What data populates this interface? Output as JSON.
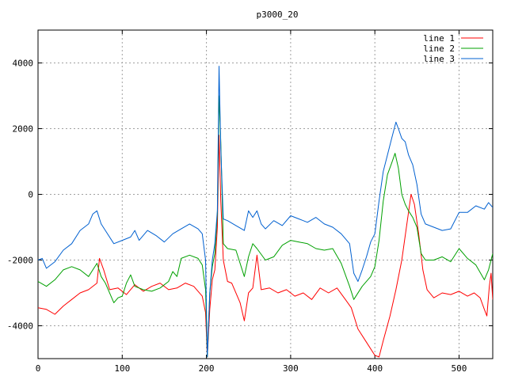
{
  "chart_data": {
    "type": "line",
    "title": "p3000_20",
    "xlabel": "",
    "ylabel": "",
    "xlim": [
      0,
      540
    ],
    "ylim": [
      -5000,
      5000
    ],
    "x_ticks": [
      0,
      100,
      200,
      300,
      400,
      500
    ],
    "y_ticks": [
      -4000,
      -2000,
      0,
      2000,
      4000
    ],
    "grid": true,
    "legend_position": "top-right",
    "series": [
      {
        "name": "line 1",
        "color": "#ff0000",
        "points": [
          [
            0,
            -3450
          ],
          [
            10,
            -3500
          ],
          [
            20,
            -3650
          ],
          [
            30,
            -3400
          ],
          [
            40,
            -3200
          ],
          [
            50,
            -3000
          ],
          [
            60,
            -2900
          ],
          [
            70,
            -2700
          ],
          [
            73,
            -1950
          ],
          [
            78,
            -2300
          ],
          [
            85,
            -2900
          ],
          [
            95,
            -2850
          ],
          [
            105,
            -3050
          ],
          [
            115,
            -2750
          ],
          [
            125,
            -2950
          ],
          [
            135,
            -2800
          ],
          [
            145,
            -2700
          ],
          [
            155,
            -2900
          ],
          [
            165,
            -2850
          ],
          [
            175,
            -2700
          ],
          [
            185,
            -2800
          ],
          [
            190,
            -2950
          ],
          [
            195,
            -3100
          ],
          [
            199,
            -3600
          ],
          [
            201,
            -4950
          ],
          [
            204,
            -3500
          ],
          [
            207,
            -2600
          ],
          [
            210,
            -2300
          ],
          [
            213,
            -1000
          ],
          [
            215,
            1800
          ],
          [
            217,
            -200
          ],
          [
            220,
            -2000
          ],
          [
            225,
            -2650
          ],
          [
            230,
            -2700
          ],
          [
            240,
            -3300
          ],
          [
            245,
            -3850
          ],
          [
            250,
            -3000
          ],
          [
            255,
            -2850
          ],
          [
            260,
            -1850
          ],
          [
            265,
            -2900
          ],
          [
            275,
            -2850
          ],
          [
            285,
            -3000
          ],
          [
            295,
            -2900
          ],
          [
            305,
            -3100
          ],
          [
            315,
            -3000
          ],
          [
            325,
            -3200
          ],
          [
            335,
            -2850
          ],
          [
            345,
            -3000
          ],
          [
            355,
            -2850
          ],
          [
            365,
            -3200
          ],
          [
            372,
            -3450
          ],
          [
            380,
            -4100
          ],
          [
            390,
            -4500
          ],
          [
            400,
            -4900
          ],
          [
            405,
            -4950
          ],
          [
            410,
            -4450
          ],
          [
            418,
            -3700
          ],
          [
            425,
            -2900
          ],
          [
            432,
            -2000
          ],
          [
            438,
            -900
          ],
          [
            443,
            0
          ],
          [
            447,
            -300
          ],
          [
            452,
            -1200
          ],
          [
            457,
            -2300
          ],
          [
            462,
            -2900
          ],
          [
            470,
            -3150
          ],
          [
            480,
            -3000
          ],
          [
            490,
            -3050
          ],
          [
            500,
            -2950
          ],
          [
            510,
            -3100
          ],
          [
            518,
            -3000
          ],
          [
            525,
            -3150
          ],
          [
            530,
            -3500
          ],
          [
            533,
            -3700
          ],
          [
            536,
            -2800
          ],
          [
            538,
            -2400
          ],
          [
            540,
            -3200
          ]
        ]
      },
      {
        "name": "line 2",
        "color": "#00a000",
        "points": [
          [
            0,
            -2650
          ],
          [
            10,
            -2800
          ],
          [
            20,
            -2600
          ],
          [
            30,
            -2300
          ],
          [
            40,
            -2200
          ],
          [
            50,
            -2300
          ],
          [
            60,
            -2500
          ],
          [
            70,
            -2100
          ],
          [
            75,
            -2500
          ],
          [
            80,
            -2700
          ],
          [
            90,
            -3300
          ],
          [
            95,
            -3150
          ],
          [
            100,
            -3100
          ],
          [
            105,
            -2700
          ],
          [
            110,
            -2450
          ],
          [
            115,
            -2800
          ],
          [
            125,
            -2900
          ],
          [
            135,
            -2950
          ],
          [
            145,
            -2850
          ],
          [
            155,
            -2650
          ],
          [
            160,
            -2350
          ],
          [
            165,
            -2500
          ],
          [
            170,
            -1950
          ],
          [
            180,
            -1850
          ],
          [
            190,
            -1950
          ],
          [
            195,
            -2150
          ],
          [
            199,
            -2900
          ],
          [
            201,
            -4950
          ],
          [
            204,
            -3000
          ],
          [
            207,
            -2200
          ],
          [
            210,
            -1800
          ],
          [
            213,
            -600
          ],
          [
            215,
            3000
          ],
          [
            217,
            1600
          ],
          [
            220,
            -1500
          ],
          [
            225,
            -1650
          ],
          [
            235,
            -1700
          ],
          [
            245,
            -2500
          ],
          [
            250,
            -1900
          ],
          [
            255,
            -1500
          ],
          [
            260,
            -1650
          ],
          [
            270,
            -2000
          ],
          [
            280,
            -1900
          ],
          [
            290,
            -1550
          ],
          [
            300,
            -1400
          ],
          [
            310,
            -1450
          ],
          [
            320,
            -1500
          ],
          [
            330,
            -1650
          ],
          [
            340,
            -1700
          ],
          [
            350,
            -1650
          ],
          [
            360,
            -2100
          ],
          [
            370,
            -2800
          ],
          [
            375,
            -3200
          ],
          [
            385,
            -2800
          ],
          [
            395,
            -2500
          ],
          [
            400,
            -2200
          ],
          [
            405,
            -1400
          ],
          [
            410,
            -200
          ],
          [
            415,
            600
          ],
          [
            420,
            950
          ],
          [
            424,
            1250
          ],
          [
            428,
            800
          ],
          [
            432,
            0
          ],
          [
            436,
            -300
          ],
          [
            440,
            -500
          ],
          [
            445,
            -700
          ],
          [
            450,
            -1000
          ],
          [
            455,
            -1800
          ],
          [
            460,
            -2000
          ],
          [
            470,
            -2000
          ],
          [
            480,
            -1900
          ],
          [
            490,
            -2050
          ],
          [
            500,
            -1650
          ],
          [
            510,
            -1950
          ],
          [
            520,
            -2150
          ],
          [
            530,
            -2600
          ],
          [
            535,
            -2300
          ],
          [
            540,
            -1800
          ]
        ]
      },
      {
        "name": "line 3",
        "color": "#0060d0",
        "points": [
          [
            0,
            -2000
          ],
          [
            5,
            -1950
          ],
          [
            10,
            -2250
          ],
          [
            20,
            -2050
          ],
          [
            30,
            -1700
          ],
          [
            40,
            -1500
          ],
          [
            50,
            -1100
          ],
          [
            60,
            -900
          ],
          [
            65,
            -600
          ],
          [
            70,
            -500
          ],
          [
            75,
            -900
          ],
          [
            80,
            -1100
          ],
          [
            90,
            -1500
          ],
          [
            100,
            -1400
          ],
          [
            110,
            -1300
          ],
          [
            115,
            -1100
          ],
          [
            120,
            -1400
          ],
          [
            130,
            -1100
          ],
          [
            140,
            -1250
          ],
          [
            150,
            -1450
          ],
          [
            160,
            -1200
          ],
          [
            170,
            -1050
          ],
          [
            180,
            -900
          ],
          [
            190,
            -1050
          ],
          [
            195,
            -1200
          ],
          [
            199,
            -2000
          ],
          [
            201,
            -4950
          ],
          [
            204,
            -3000
          ],
          [
            207,
            -2000
          ],
          [
            210,
            -1500
          ],
          [
            213,
            -500
          ],
          [
            215,
            3900
          ],
          [
            217,
            1400
          ],
          [
            220,
            -750
          ],
          [
            225,
            -800
          ],
          [
            235,
            -950
          ],
          [
            245,
            -1100
          ],
          [
            250,
            -500
          ],
          [
            255,
            -700
          ],
          [
            260,
            -500
          ],
          [
            265,
            -900
          ],
          [
            270,
            -1050
          ],
          [
            280,
            -800
          ],
          [
            290,
            -950
          ],
          [
            300,
            -650
          ],
          [
            310,
            -750
          ],
          [
            320,
            -850
          ],
          [
            330,
            -700
          ],
          [
            340,
            -900
          ],
          [
            350,
            -1000
          ],
          [
            360,
            -1200
          ],
          [
            370,
            -1500
          ],
          [
            375,
            -2400
          ],
          [
            380,
            -2650
          ],
          [
            385,
            -2300
          ],
          [
            390,
            -1900
          ],
          [
            395,
            -1450
          ],
          [
            400,
            -1200
          ],
          [
            405,
            -200
          ],
          [
            410,
            700
          ],
          [
            415,
            1200
          ],
          [
            420,
            1700
          ],
          [
            425,
            2200
          ],
          [
            428,
            2000
          ],
          [
            432,
            1700
          ],
          [
            436,
            1600
          ],
          [
            440,
            1200
          ],
          [
            445,
            900
          ],
          [
            450,
            300
          ],
          [
            455,
            -600
          ],
          [
            460,
            -900
          ],
          [
            470,
            -1000
          ],
          [
            480,
            -1100
          ],
          [
            490,
            -1050
          ],
          [
            500,
            -550
          ],
          [
            510,
            -550
          ],
          [
            520,
            -350
          ],
          [
            530,
            -450
          ],
          [
            535,
            -250
          ],
          [
            540,
            -400
          ]
        ]
      }
    ]
  }
}
